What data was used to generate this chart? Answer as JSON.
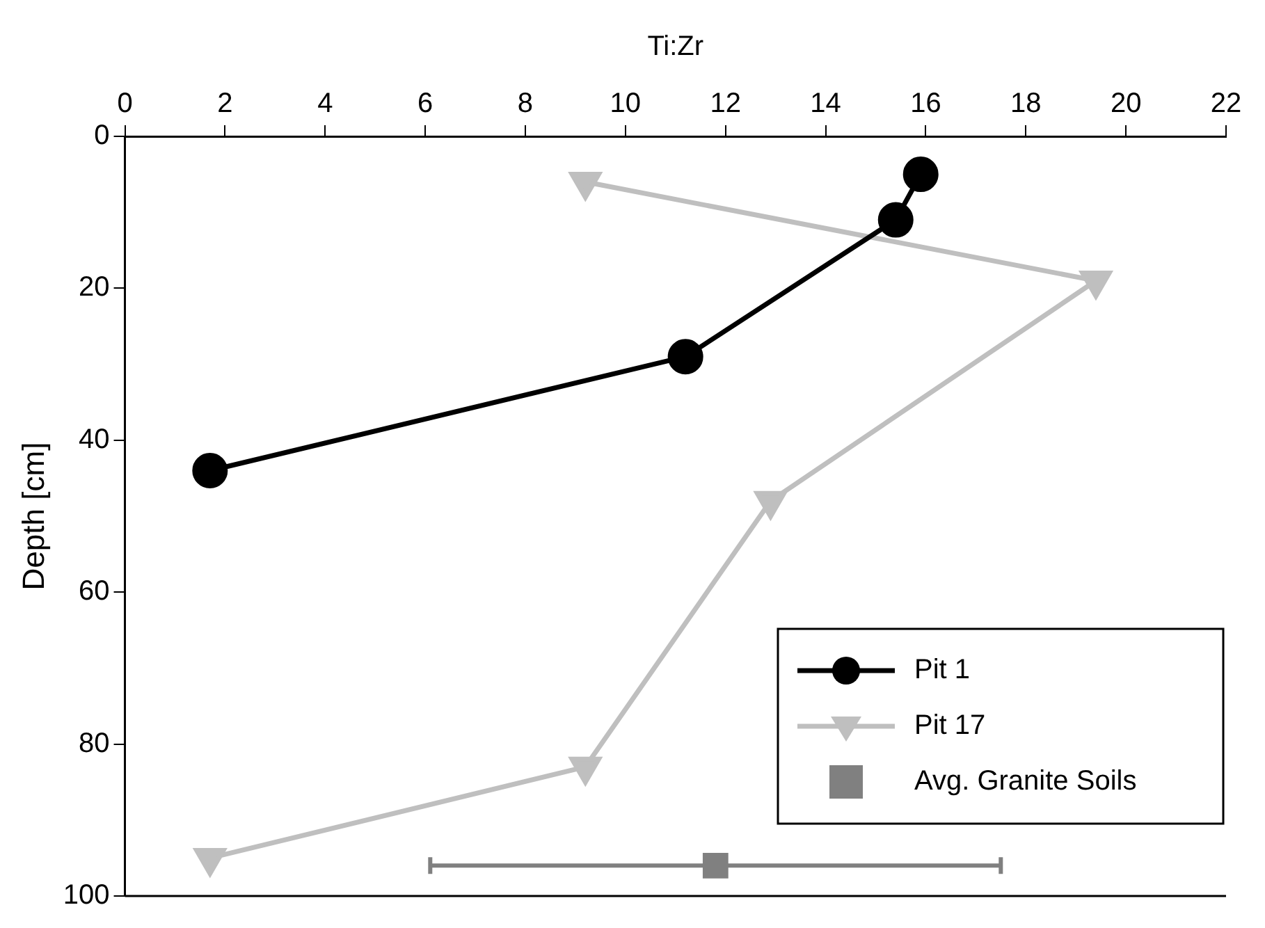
{
  "chart_data": {
    "type": "line",
    "xlabel": "Ti:Zr",
    "ylabel": "Depth [cm]",
    "xlim": [
      0,
      22
    ],
    "xticks": [
      0,
      2,
      4,
      6,
      8,
      10,
      12,
      14,
      16,
      18,
      20,
      22
    ],
    "ylim": [
      100,
      0
    ],
    "yticks": [
      0,
      20,
      40,
      60,
      80,
      100
    ],
    "grid": false,
    "legend": "bottom right",
    "line_style": "solid",
    "series": [
      {
        "name": "Pit 1",
        "color": "#000000",
        "marker": "circle",
        "x": [
          15.9,
          15.4,
          11.2,
          1.7
        ],
        "values": [
          5,
          11,
          29,
          44
        ]
      },
      {
        "name": "Pit 17",
        "color": "#bfbfbf",
        "marker": "triangle",
        "x": [
          9.2,
          19.4,
          12.9,
          9.2,
          1.7
        ],
        "values": [
          6,
          19,
          48,
          83,
          95
        ]
      },
      {
        "name": "Avg. Granite Soils",
        "type": "scatter",
        "color": "#808080",
        "marker": "square",
        "x": [
          11.8
        ],
        "values": [
          96
        ],
        "xerrors": [
          [
            6.1,
            17.5
          ]
        ]
      }
    ]
  }
}
